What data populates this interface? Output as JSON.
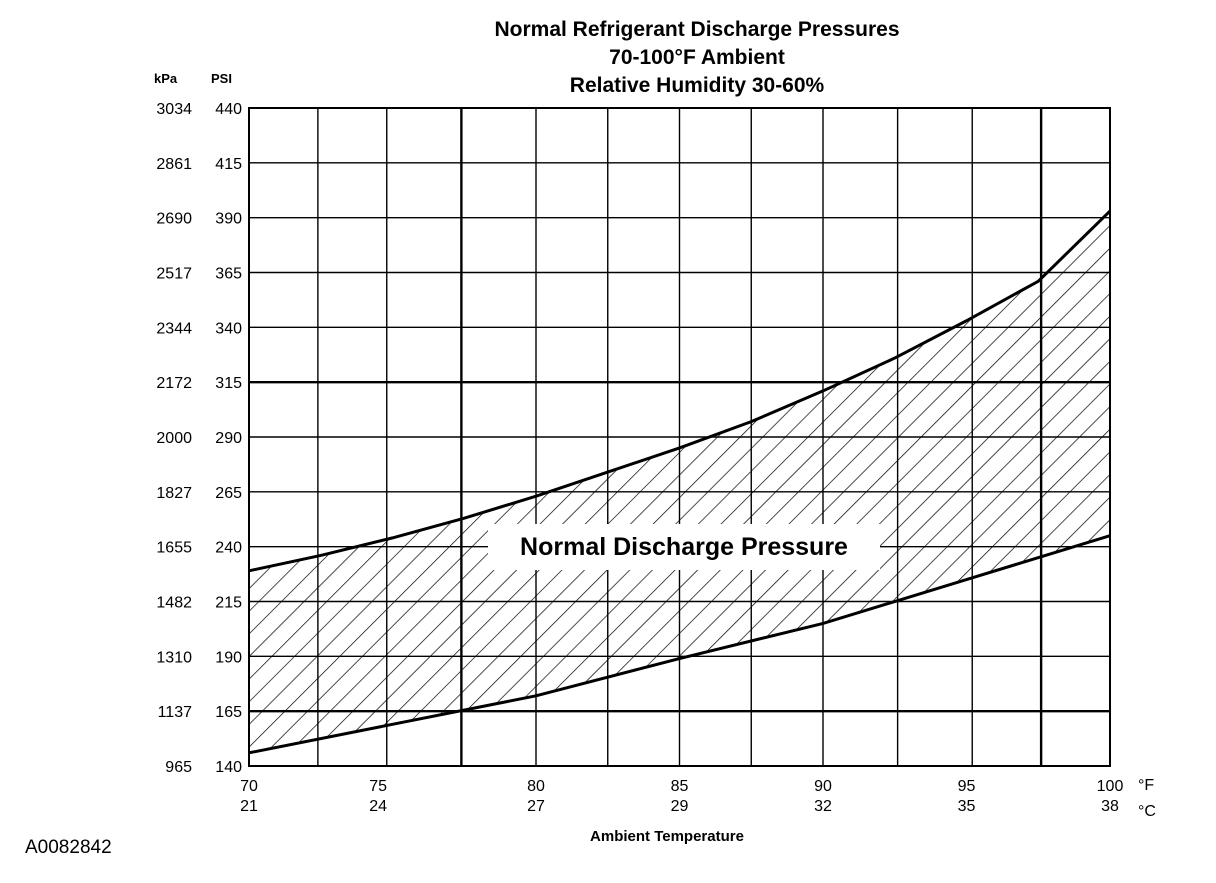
{
  "chart_data": {
    "type": "area",
    "title": [
      "Normal Refrigerant Discharge Pressures",
      "70-100°F Ambient",
      "Relative Humidity 30-60%"
    ],
    "xlabel": "Ambient Temperature",
    "x_unit_primary": "°F",
    "x_unit_secondary": "°C",
    "y_unit_primary": "PSI",
    "y_unit_secondary": "kPa",
    "xlim": [
      70,
      100
    ],
    "ylim": [
      140,
      440
    ],
    "x_ticks": [
      {
        "f": "70",
        "c": "21",
        "v": 70
      },
      {
        "f": "75",
        "c": "24",
        "v": 74.5
      },
      {
        "f": "80",
        "c": "27",
        "v": 80
      },
      {
        "f": "85",
        "c": "29",
        "v": 85
      },
      {
        "f": "90",
        "c": "32",
        "v": 90
      },
      {
        "f": "95",
        "c": "35",
        "v": 95
      },
      {
        "f": "100",
        "c": "38",
        "v": 100
      }
    ],
    "x_gridlines": [
      72.4,
      74.8,
      77.4,
      80,
      82.5,
      85,
      87.5,
      90,
      92.6,
      95.2,
      97.6,
      100
    ],
    "x_gridlines_bold": [
      77.4,
      97.6
    ],
    "y_ticks": [
      {
        "psi": "440",
        "kpa": "3034",
        "v": 440
      },
      {
        "psi": "415",
        "kpa": "2861",
        "v": 415
      },
      {
        "psi": "390",
        "kpa": "2690",
        "v": 390
      },
      {
        "psi": "365",
        "kpa": "2517",
        "v": 365
      },
      {
        "psi": "340",
        "kpa": "2344",
        "v": 340
      },
      {
        "psi": "315",
        "kpa": "2172",
        "v": 315
      },
      {
        "psi": "290",
        "kpa": "2000",
        "v": 290
      },
      {
        "psi": "265",
        "kpa": "1827",
        "v": 265
      },
      {
        "psi": "240",
        "kpa": "1655",
        "v": 240
      },
      {
        "psi": "215",
        "kpa": "1482",
        "v": 215
      },
      {
        "psi": "190",
        "kpa": "1310",
        "v": 190
      },
      {
        "psi": "165",
        "kpa": "1137",
        "v": 165
      },
      {
        "psi": "140",
        "kpa": "965",
        "v": 140
      }
    ],
    "y_gridlines_bold": [
      315,
      165
    ],
    "series": [
      {
        "name": "upper",
        "points": [
          [
            70,
            229
          ],
          [
            72.5,
            236
          ],
          [
            75,
            244
          ],
          [
            77.5,
            253
          ],
          [
            80,
            263
          ],
          [
            82.5,
            274
          ],
          [
            85,
            285
          ],
          [
            87.5,
            297
          ],
          [
            90,
            311
          ],
          [
            92.5,
            326
          ],
          [
            95,
            343
          ],
          [
            97.5,
            361
          ],
          [
            100,
            393
          ]
        ]
      },
      {
        "name": "lower",
        "points": [
          [
            70,
            146
          ],
          [
            75,
            159
          ],
          [
            80,
            172
          ],
          [
            85,
            189
          ],
          [
            90,
            205
          ],
          [
            95,
            225
          ],
          [
            100,
            245
          ]
        ]
      }
    ],
    "band_label": "Normal Discharge Pressure",
    "grid": true,
    "fill": "diagonal hatch"
  },
  "figure_id": "A0082842"
}
